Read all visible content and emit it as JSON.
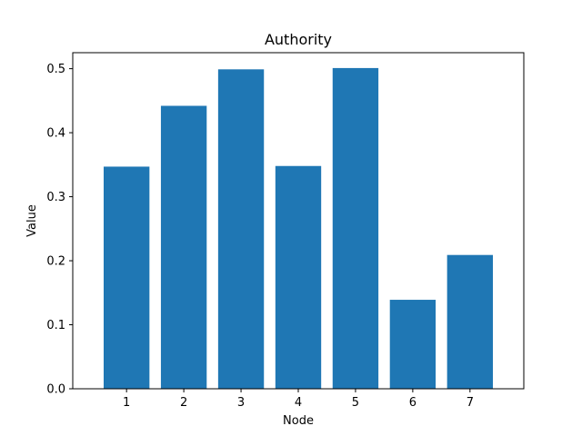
{
  "chart_data": {
    "type": "bar",
    "title": "Authority",
    "xlabel": "Node",
    "ylabel": "Value",
    "categories": [
      "1",
      "2",
      "3",
      "4",
      "5",
      "6",
      "7"
    ],
    "values": [
      0.347,
      0.442,
      0.499,
      0.348,
      0.501,
      0.139,
      0.209
    ],
    "ylim": [
      0,
      0.525
    ],
    "yticks": [
      0.0,
      0.1,
      0.2,
      0.3,
      0.4,
      0.5
    ],
    "ytick_labels": [
      "0.0",
      "0.1",
      "0.2",
      "0.3",
      "0.4",
      "0.5"
    ],
    "bar_color": "#1f77b4",
    "grid": false,
    "legend": "none"
  }
}
